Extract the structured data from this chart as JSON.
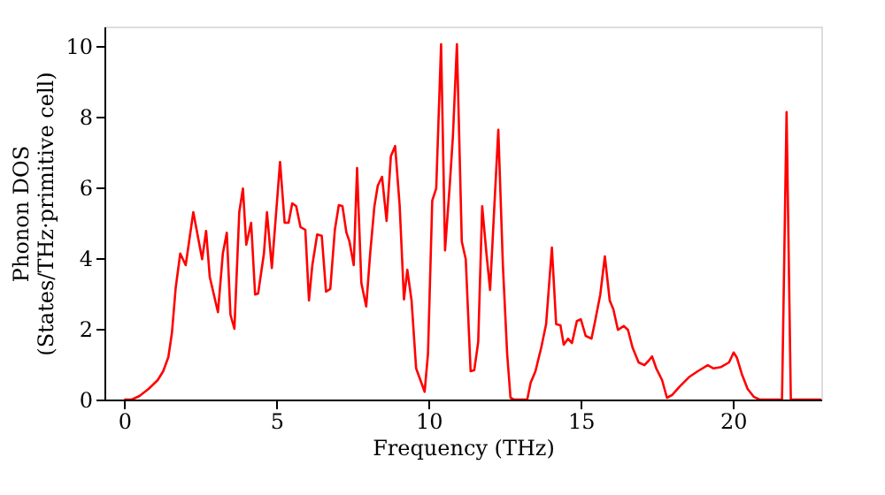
{
  "chart_data": {
    "type": "line",
    "xlabel": "Frequency (THz)",
    "ylabel": "Phonon DOS\n(States/THz·primitive cell)",
    "xlim": [
      -0.65,
      22.9
    ],
    "ylim": [
      0,
      10.55
    ],
    "xticks": [
      0,
      5,
      10,
      15,
      20
    ],
    "yticks": [
      0,
      2,
      4,
      6,
      8,
      10
    ],
    "grid": false,
    "marker": "none",
    "line_style": "solid",
    "x": [
      0,
      0.25,
      0.5,
      0.8,
      1.1,
      1.28,
      1.45,
      1.57,
      1.69,
      1.84,
      2.02,
      2.27,
      2.56,
      2.69,
      2.81,
      3.08,
      3.24,
      3.37,
      3.49,
      3.62,
      3.78,
      3.9,
      4.01,
      4.17,
      4.3,
      4.4,
      4.59,
      4.69,
      4.85,
      5.12,
      5.27,
      5.4,
      5.52,
      5.65,
      5.79,
      5.95,
      6.07,
      6.18,
      6.34,
      6.49,
      6.63,
      6.77,
      6.92,
      7.05,
      7.17,
      7.3,
      7.4,
      7.54,
      7.65,
      7.79,
      7.95,
      8.08,
      8.22,
      8.33,
      8.47,
      8.62,
      8.76,
      8.9,
      9.05,
      9.19,
      9.3,
      9.44,
      9.59,
      9.73,
      9.87,
      9.98,
      10.12,
      10.25,
      10.41,
      10.54,
      10.7,
      10.8,
      10.93,
      11.09,
      11.22,
      11.38,
      11.5,
      11.63,
      11.76,
      11.9,
      12.02,
      12.15,
      12.29,
      12.44,
      12.58,
      12.69,
      12.8,
      13.24,
      13.35,
      13.51,
      13.7,
      13.86,
      14.05,
      14.19,
      14.33,
      14.44,
      14.58,
      14.71,
      14.87,
      15.0,
      15.16,
      15.35,
      15.45,
      15.64,
      15.79,
      15.95,
      16.07,
      16.22,
      16.41,
      16.55,
      16.7,
      16.9,
      17.09,
      17.23,
      17.34,
      17.48,
      17.67,
      17.83,
      18.0,
      18.26,
      18.55,
      18.84,
      19.17,
      19.36,
      19.61,
      19.87,
      20.02,
      20.13,
      20.29,
      20.48,
      20.68,
      20.87,
      21.61,
      21.76,
      21.9,
      22.9
    ],
    "series": [
      {
        "color": "#ff0000",
        "values": [
          0,
          0,
          0.1,
          0.3,
          0.55,
          0.8,
          1.2,
          1.9,
          3.15,
          4.13,
          3.8,
          5.3,
          3.97,
          4.77,
          3.47,
          2.47,
          4.13,
          4.72,
          2.4,
          2.0,
          5.3,
          5.97,
          4.38,
          5.0,
          2.97,
          3.0,
          4.13,
          5.3,
          3.72,
          6.72,
          5.0,
          5.0,
          5.55,
          5.47,
          4.88,
          4.8,
          2.8,
          3.8,
          4.67,
          4.63,
          3.05,
          3.13,
          4.8,
          5.5,
          5.47,
          4.72,
          4.47,
          3.8,
          6.55,
          3.3,
          2.63,
          4.13,
          5.47,
          6.05,
          6.3,
          5.05,
          6.88,
          7.17,
          5.47,
          2.83,
          3.67,
          2.8,
          0.88,
          0.55,
          0.22,
          1.3,
          5.63,
          5.97,
          10.05,
          4.22,
          6.13,
          7.47,
          10.05,
          4.47,
          3.97,
          0.8,
          0.83,
          1.63,
          5.47,
          4.13,
          3.1,
          5.3,
          7.63,
          3.8,
          1.3,
          0.05,
          0,
          0,
          0.47,
          0.8,
          1.47,
          2.13,
          4.3,
          2.13,
          2.1,
          1.55,
          1.72,
          1.6,
          2.22,
          2.27,
          1.8,
          1.72,
          2.13,
          2.97,
          4.05,
          2.8,
          2.55,
          1.97,
          2.08,
          1.97,
          1.47,
          1.05,
          0.97,
          1.1,
          1.22,
          0.88,
          0.55,
          0.05,
          0.13,
          0.38,
          0.63,
          0.8,
          0.97,
          0.88,
          0.92,
          1.05,
          1.33,
          1.18,
          0.72,
          0.3,
          0.08,
          0,
          0,
          8.13,
          0,
          0
        ]
      }
    ]
  }
}
